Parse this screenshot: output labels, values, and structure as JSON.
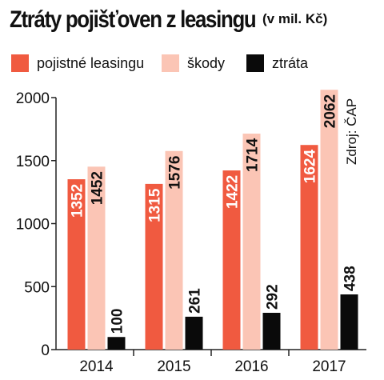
{
  "title": "Ztráty pojišťoven z leasingu",
  "title_unit": "(v mil. Kč)",
  "source": "Zdroj: ČAP",
  "colors": {
    "pojistne": "#f05a40",
    "skody": "#fbc5b5",
    "ztrata": "#0a0a0a"
  },
  "legend": [
    {
      "label": "pojistné leasingu",
      "color": "#f05a40"
    },
    {
      "label": "škody",
      "color": "#fbc5b5"
    },
    {
      "label": "ztráta",
      "color": "#0a0a0a"
    }
  ],
  "chart_data": {
    "type": "bar",
    "categories": [
      "2014",
      "2015",
      "2016",
      "2017"
    ],
    "series": [
      {
        "name": "pojistné leasingu",
        "values": [
          1352,
          1315,
          1422,
          1624
        ]
      },
      {
        "name": "škody",
        "values": [
          1452,
          1576,
          1714,
          2062
        ]
      },
      {
        "name": "ztráta",
        "values": [
          100,
          261,
          292,
          438
        ]
      }
    ],
    "ylim": [
      0,
      2000
    ],
    "yticks": [
      "0",
      "500",
      "1000",
      "1500",
      "2000"
    ],
    "grid": false,
    "legend_position": "top"
  }
}
